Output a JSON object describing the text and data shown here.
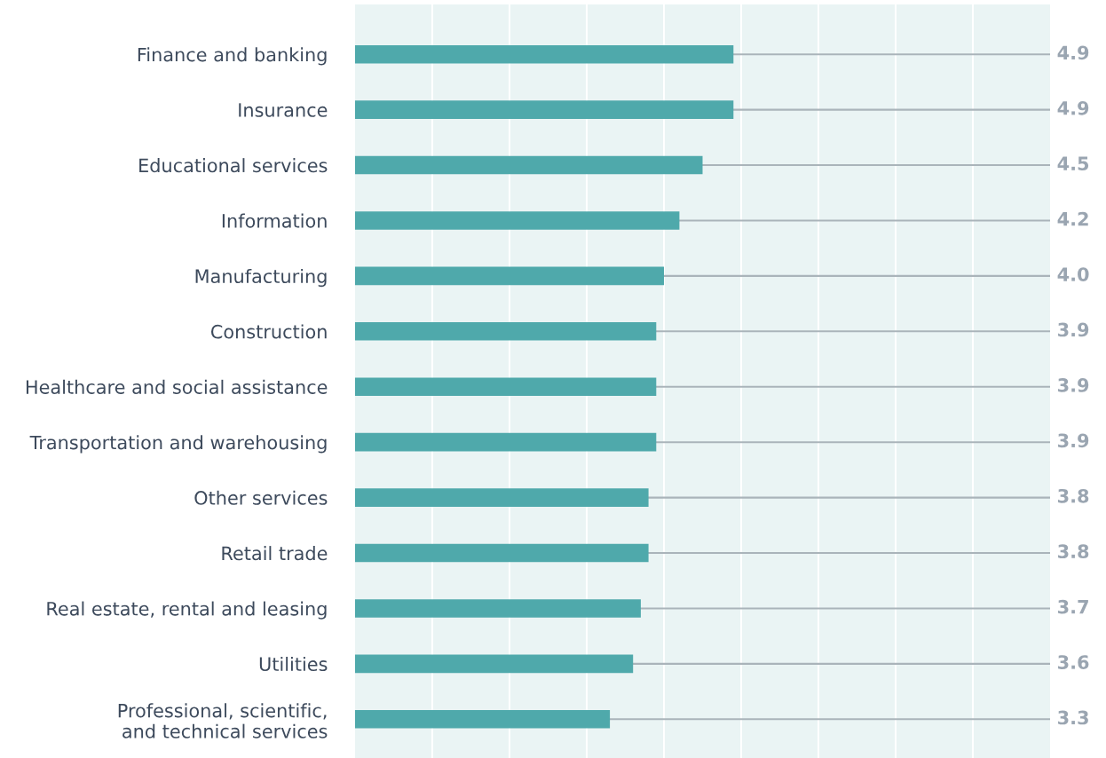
{
  "chart_data": {
    "type": "bar",
    "orientation": "horizontal",
    "categories": [
      "Finance and banking",
      "Insurance",
      "Educational services",
      "Information",
      "Manufacturing",
      "Construction",
      "Healthcare and social assistance",
      "Transportation and warehousing",
      "Other services",
      "Retail trade",
      "Real estate, rental and leasing",
      "Utilities",
      "Professional, scientific,\nand technical services"
    ],
    "values": [
      4.9,
      4.9,
      4.5,
      4.2,
      4.0,
      3.9,
      3.9,
      3.9,
      3.8,
      3.8,
      3.7,
      3.6,
      3.3
    ],
    "value_labels": [
      "4.9",
      "4.9",
      "4.5",
      "4.2",
      "4.0",
      "3.9",
      "3.9",
      "3.9",
      "3.8",
      "3.8",
      "3.7",
      "3.6",
      "3.3"
    ],
    "color": "#4fa9ab",
    "xlim": [
      0,
      9
    ],
    "xticks": [
      {
        "value": 1,
        "label": null
      },
      {
        "value": 2,
        "label": null
      },
      {
        "value": 3,
        "label": null
      },
      {
        "value": 4,
        "label": null
      },
      {
        "value": 5,
        "label": null
      },
      {
        "value": 6,
        "label": null
      },
      {
        "value": 7,
        "label": null
      },
      {
        "value": 8,
        "label": null
      }
    ],
    "grid": "x",
    "tick_labels": "y"
  }
}
